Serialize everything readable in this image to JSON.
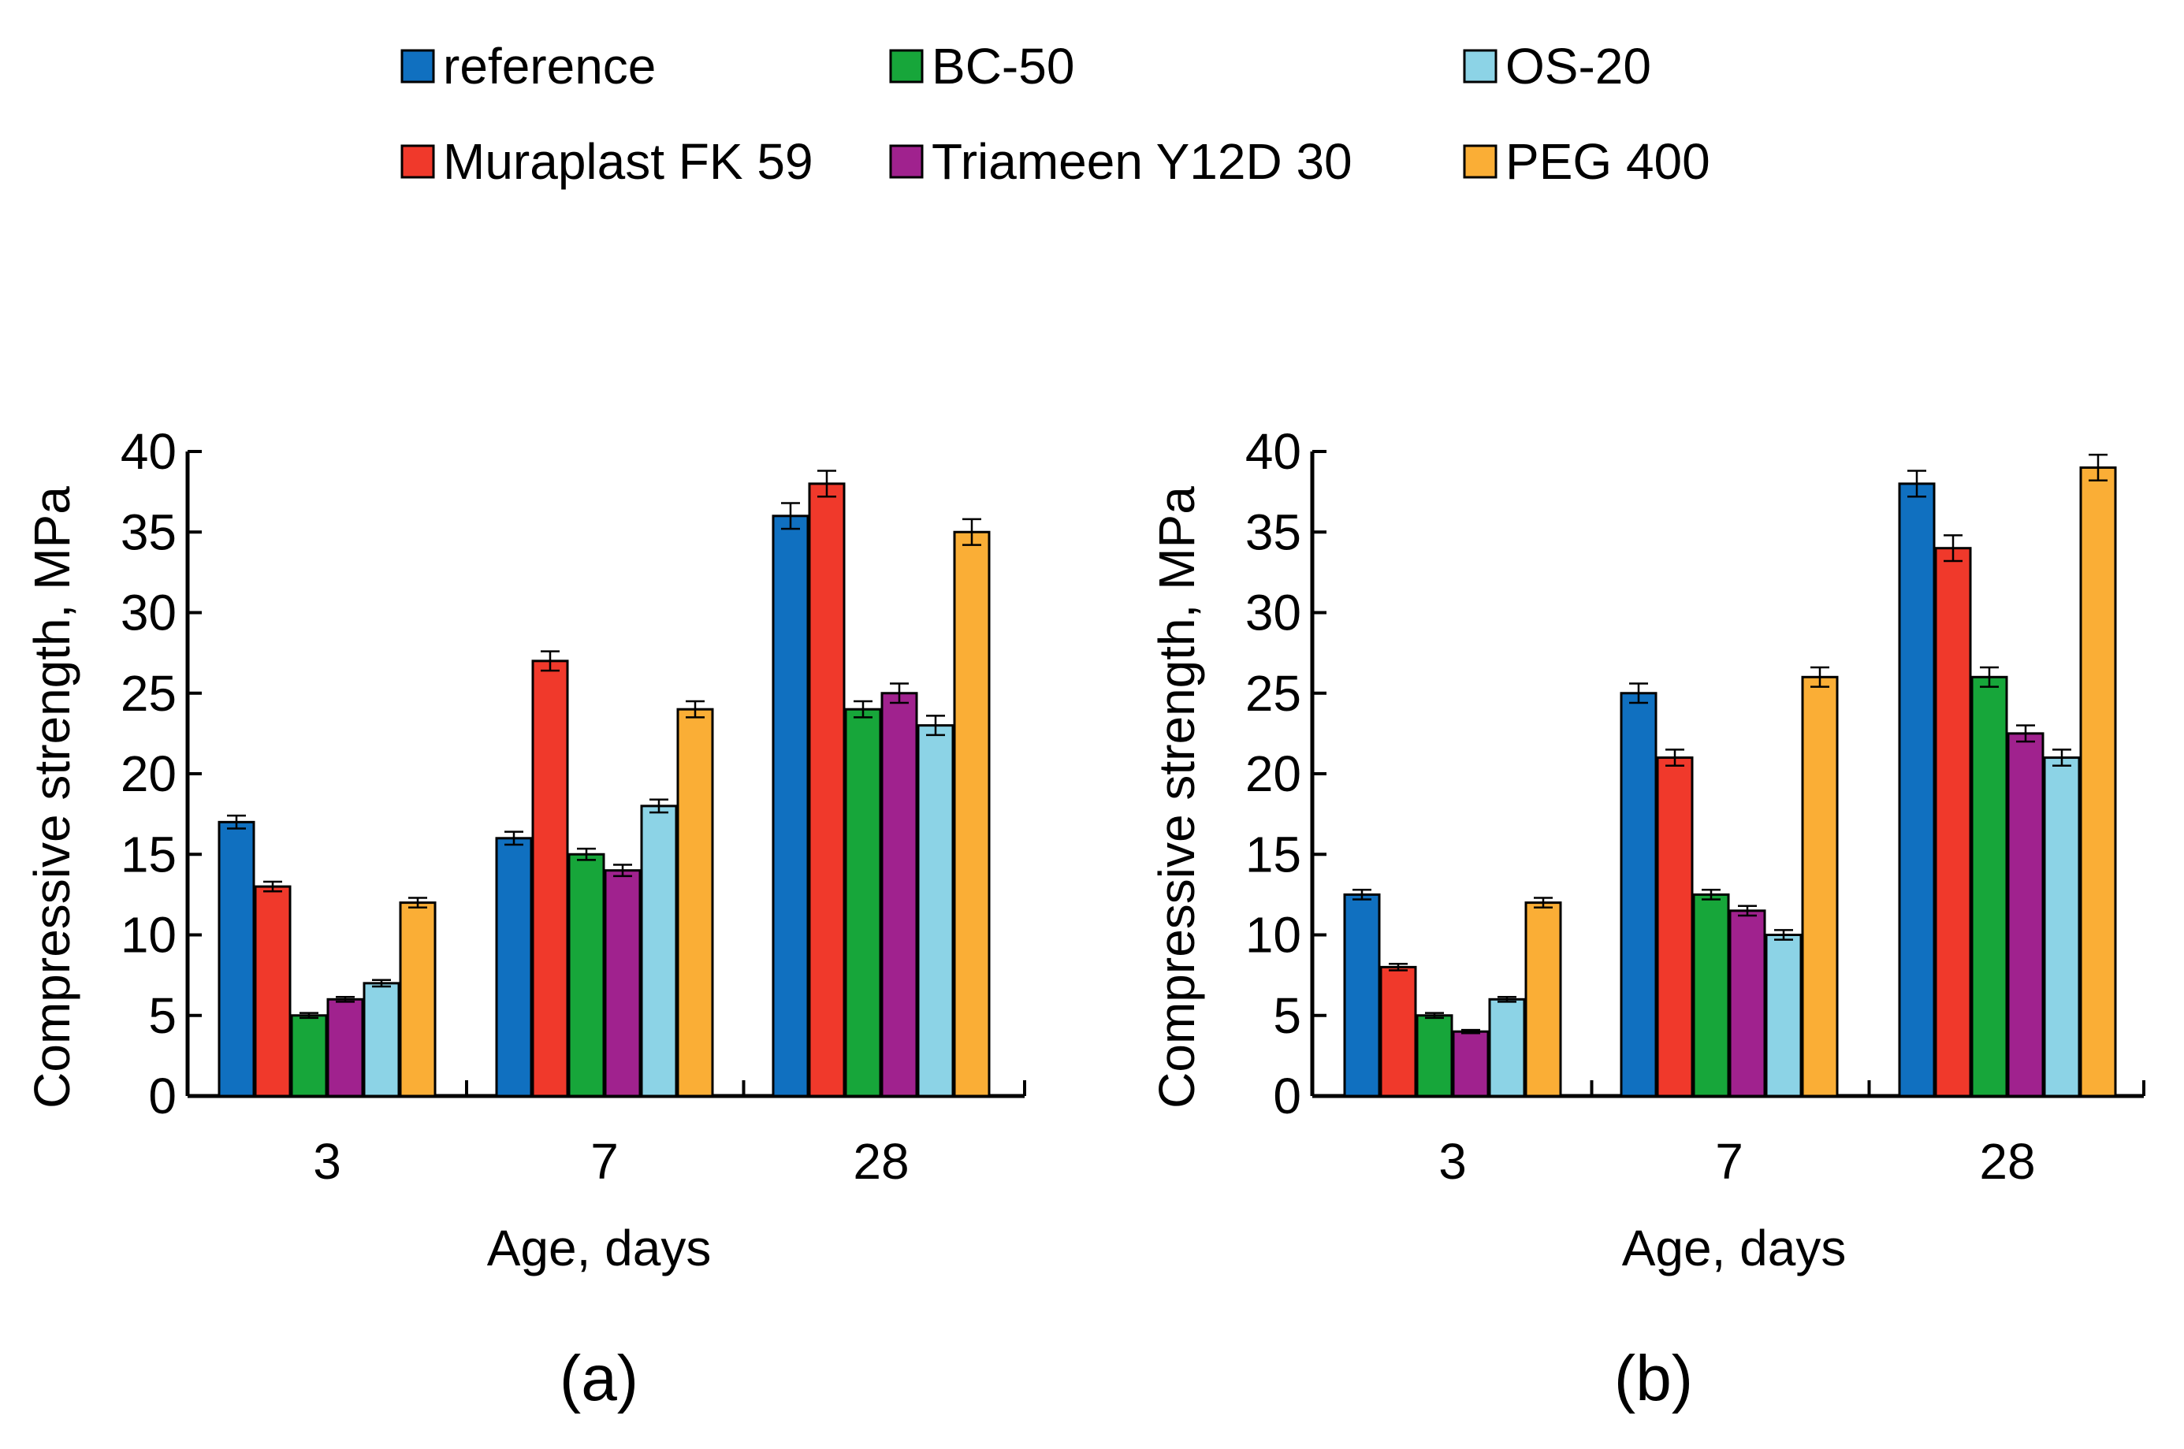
{
  "chart_data": [
    {
      "type": "bar",
      "panel_label": "(a)",
      "xlabel": "Age, days",
      "ylabel": "Compressive strength, MPa",
      "ylim": [
        0,
        40
      ],
      "yticks": [
        "0",
        "5",
        "10",
        "15",
        "20",
        "25",
        "30",
        "35",
        "40"
      ],
      "categories": [
        "3",
        "7",
        "28"
      ],
      "error_bars": true,
      "series": [
        {
          "name": "reference",
          "color": "#1070C0",
          "values": [
            17,
            16,
            36
          ],
          "errors": [
            0.4,
            0.4,
            0.8
          ]
        },
        {
          "name": "Muraplast FK 59",
          "color": "#F0392B",
          "values": [
            13,
            27,
            38
          ],
          "errors": [
            0.3,
            0.6,
            0.8
          ]
        },
        {
          "name": "BC-50",
          "color": "#17A63A",
          "values": [
            5,
            15,
            24
          ],
          "errors": [
            0.15,
            0.35,
            0.5
          ]
        },
        {
          "name": "Triameen Y12D 30",
          "color": "#A0228E",
          "values": [
            6,
            14,
            25
          ],
          "errors": [
            0.15,
            0.35,
            0.6
          ]
        },
        {
          "name": "OS-20",
          "color": "#8CD3E6",
          "values": [
            7,
            18,
            23
          ],
          "errors": [
            0.2,
            0.4,
            0.6
          ]
        },
        {
          "name": "PEG 400",
          "color": "#FAAE36",
          "values": [
            12,
            24,
            35
          ],
          "errors": [
            0.3,
            0.5,
            0.8
          ]
        }
      ]
    },
    {
      "type": "bar",
      "panel_label": "(b)",
      "xlabel": "Age, days",
      "ylabel": "Compressive strength, MPa",
      "ylim": [
        0,
        40
      ],
      "yticks": [
        "0",
        "5",
        "10",
        "15",
        "20",
        "25",
        "30",
        "35",
        "40"
      ],
      "categories": [
        "3",
        "7",
        "28"
      ],
      "error_bars": true,
      "series": [
        {
          "name": "reference",
          "color": "#1070C0",
          "values": [
            12.5,
            25,
            38
          ],
          "errors": [
            0.3,
            0.6,
            0.8
          ]
        },
        {
          "name": "Muraplast FK 59",
          "color": "#F0392B",
          "values": [
            8,
            21,
            34
          ],
          "errors": [
            0.2,
            0.5,
            0.8
          ]
        },
        {
          "name": "BC-50",
          "color": "#17A63A",
          "values": [
            5,
            12.5,
            26
          ],
          "errors": [
            0.15,
            0.3,
            0.6
          ]
        },
        {
          "name": "Triameen Y12D 30",
          "color": "#A0228E",
          "values": [
            4,
            11.5,
            22.5
          ],
          "errors": [
            0.1,
            0.3,
            0.5
          ]
        },
        {
          "name": "OS-20",
          "color": "#8CD3E6",
          "values": [
            6,
            10,
            21
          ],
          "errors": [
            0.15,
            0.3,
            0.5
          ]
        },
        {
          "name": "PEG 400",
          "color": "#FAAE36",
          "values": [
            12,
            26,
            39
          ],
          "errors": [
            0.3,
            0.6,
            0.8
          ]
        }
      ]
    }
  ],
  "legend": {
    "placement": "top-center",
    "entries": [
      {
        "name": "reference",
        "color": "#1070C0"
      },
      {
        "name": "BC-50",
        "color": "#17A63A"
      },
      {
        "name": "OS-20",
        "color": "#8CD3E6"
      },
      {
        "name": "Muraplast FK 59",
        "color": "#F0392B"
      },
      {
        "name": "Triameen Y12D 30",
        "color": "#A0228E"
      },
      {
        "name": "PEG 400",
        "color": "#FAAE36"
      }
    ]
  }
}
